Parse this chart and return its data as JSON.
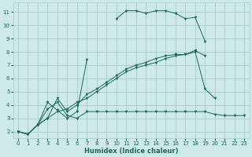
{
  "bg_color": "#ceeae6",
  "grid_color": "#a8ccc8",
  "line_color": "#1a6b5a",
  "xlabel": "Humidex (Indice chaleur)",
  "xlim": [
    -0.5,
    23.5
  ],
  "ylim": [
    1.5,
    11.7
  ],
  "xticks": [
    0,
    1,
    2,
    3,
    4,
    5,
    6,
    7,
    8,
    9,
    10,
    11,
    12,
    13,
    14,
    15,
    16,
    17,
    18,
    19,
    20,
    21,
    22,
    23
  ],
  "yticks": [
    2,
    3,
    4,
    5,
    6,
    7,
    8,
    9,
    10,
    11
  ],
  "series": [
    {
      "x": [
        0,
        1,
        2,
        3,
        4,
        5,
        6,
        7,
        8,
        9,
        10,
        11,
        12,
        13,
        14,
        15,
        16,
        17,
        18,
        19,
        20,
        21,
        22,
        23
      ],
      "y": [
        2.0,
        1.8,
        2.5,
        4.2,
        3.6,
        3.0,
        3.5,
        7.4,
        null,
        null,
        10.5,
        11.1,
        11.1,
        10.9,
        11.1,
        11.1,
        10.9,
        10.5,
        10.6,
        8.8,
        null,
        null,
        null,
        null
      ]
    },
    {
      "x": [
        0,
        1,
        2,
        3,
        4,
        5,
        6,
        7,
        8,
        9,
        10,
        11,
        12,
        13,
        14,
        15,
        16,
        17,
        18,
        19,
        20,
        21,
        22,
        23
      ],
      "y": [
        2.0,
        1.8,
        2.5,
        3.7,
        4.2,
        3.2,
        3.0,
        3.5,
        3.5,
        3.5,
        3.5,
        3.5,
        3.5,
        3.5,
        3.5,
        3.5,
        3.5,
        3.5,
        3.5,
        3.5,
        3.3,
        3.2,
        3.2,
        3.2
      ]
    },
    {
      "x": [
        0,
        1,
        2,
        3,
        4,
        5,
        6,
        7,
        8,
        9,
        10,
        11,
        12,
        13,
        14,
        15,
        16,
        17,
        18,
        19,
        20,
        21,
        22,
        23
      ],
      "y": [
        2.0,
        1.8,
        2.5,
        3.0,
        3.5,
        3.7,
        4.2,
        4.5,
        5.0,
        5.5,
        6.0,
        6.5,
        6.8,
        7.0,
        7.2,
        7.5,
        7.7,
        7.8,
        8.0,
        5.2,
        4.5,
        null,
        null,
        null
      ]
    },
    {
      "x": [
        0,
        1,
        2,
        3,
        4,
        5,
        6,
        7,
        8,
        9,
        10,
        11,
        12,
        13,
        14,
        15,
        16,
        17,
        18,
        19,
        20,
        21,
        22,
        23
      ],
      "y": [
        2.0,
        1.8,
        2.5,
        3.0,
        4.5,
        3.5,
        4.0,
        4.8,
        5.2,
        5.7,
        6.2,
        6.7,
        7.0,
        7.2,
        7.5,
        7.7,
        7.8,
        7.8,
        8.1,
        7.7,
        null,
        null,
        null,
        null
      ]
    }
  ]
}
